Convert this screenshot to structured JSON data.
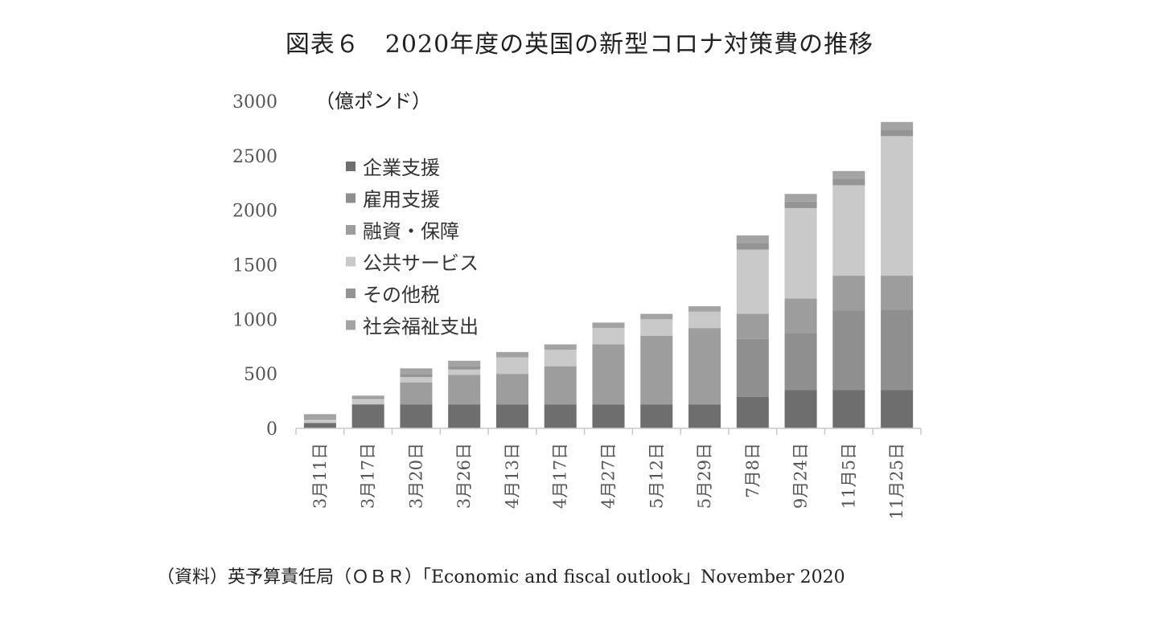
{
  "title": "図表６　2020年度の英国の新型コロナ対策費の推移",
  "source": "（資料）英予算責任局（ＯＢＲ）「Economic and fiscal outlook」November 2020",
  "chart_data": {
    "type": "bar",
    "stacked": true,
    "title": "図表６　2020年度の英国の新型コロナ対策費の推移",
    "unit_label": "（億ポンド）",
    "ylim": [
      0,
      3000
    ],
    "yticks": [
      0,
      500,
      1000,
      1500,
      2000,
      2500,
      3000
    ],
    "legend_position": "top-left",
    "grid": false,
    "categories": [
      "3月11日",
      "3月17日",
      "3月20日",
      "3月26日",
      "4月13日",
      "4月17日",
      "4月27日",
      "5月12日",
      "5月29日",
      "7月8日",
      "9月24日",
      "11月5日",
      "11月25日"
    ],
    "series": [
      {
        "name": "企業支援",
        "color": "#6e6e6e",
        "values": [
          50,
          220,
          220,
          220,
          220,
          220,
          220,
          220,
          220,
          290,
          350,
          350,
          350
        ]
      },
      {
        "name": "雇用支援",
        "color": "#8f8f8f",
        "values": [
          0,
          0,
          0,
          0,
          0,
          0,
          0,
          0,
          0,
          530,
          520,
          730,
          740
        ]
      },
      {
        "name": "融資・保障",
        "color": "#9d9d9d",
        "values": [
          0,
          0,
          200,
          270,
          280,
          350,
          550,
          630,
          700,
          230,
          320,
          320,
          310
        ]
      },
      {
        "name": "公共サービス",
        "color": "#c9c9c9",
        "values": [
          30,
          50,
          50,
          50,
          150,
          150,
          150,
          150,
          150,
          590,
          830,
          830,
          1280
        ]
      },
      {
        "name": "その他税",
        "color": "#949494",
        "values": [
          10,
          10,
          30,
          30,
          0,
          0,
          0,
          0,
          0,
          60,
          60,
          60,
          60
        ]
      },
      {
        "name": "社会福祉支出",
        "color": "#a3a3a3",
        "values": [
          40,
          20,
          50,
          50,
          50,
          50,
          50,
          50,
          50,
          70,
          70,
          70,
          70
        ]
      }
    ]
  }
}
